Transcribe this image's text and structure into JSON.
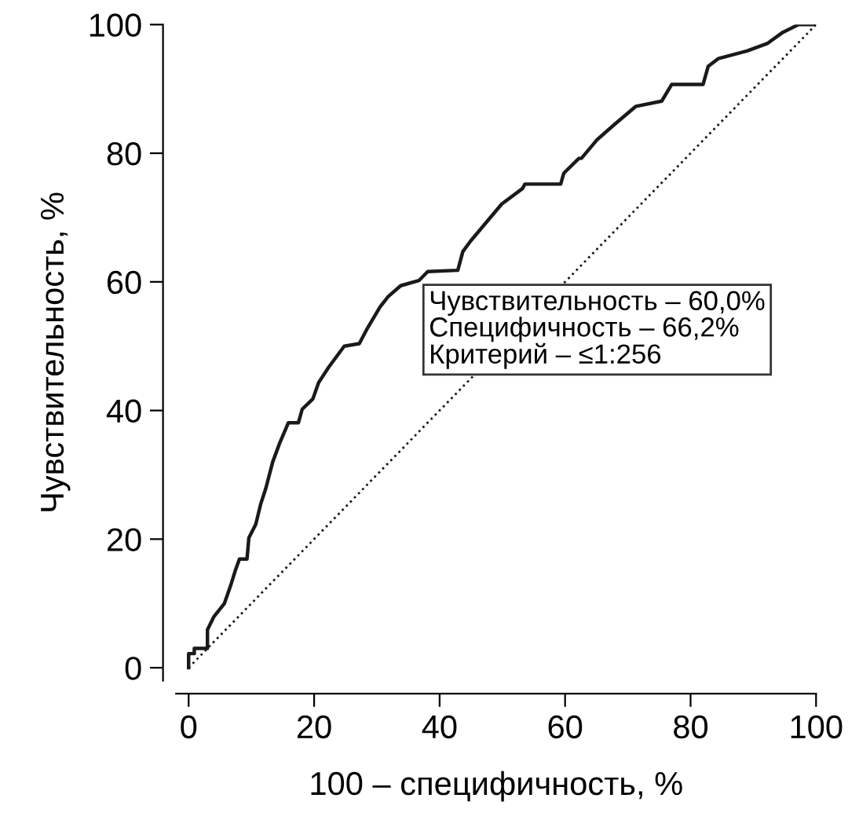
{
  "chart_data": {
    "type": "line",
    "xlabel": "100 – специфичность, %",
    "ylabel": "Чувствительность, %",
    "xlim": [
      -2,
      100
    ],
    "ylim": [
      -2,
      100
    ],
    "xticks": [
      0,
      20,
      40,
      60,
      80,
      100
    ],
    "yticks": [
      0,
      20,
      40,
      60,
      80,
      100
    ],
    "grid": false,
    "legend": false,
    "series": [
      {
        "color": "#1a1a1a",
        "line_style": "solid",
        "x": [
          0,
          0,
          0.9,
          0.9,
          3,
          3,
          4,
          5.7,
          6.7,
          7.4,
          8.1,
          9.3,
          9.6,
          10.7,
          11.5,
          12.3,
          13.4,
          14.5,
          15.9,
          17.5,
          18.1,
          19.8,
          20.7,
          22.3,
          24.8,
          27.2,
          28.5,
          30.5,
          31.8,
          33.8,
          36.7,
          38.1,
          42.9,
          43.7,
          44.9,
          47.4,
          49.9,
          53.2,
          53.6,
          59.3,
          59.8,
          62.2,
          62.6,
          65.1,
          67.9,
          71.3,
          75.4,
          77,
          82,
          82.8,
          84.4,
          89,
          92.3,
          94.7,
          97.2,
          100
        ],
        "values": [
          0,
          2.2,
          2.2,
          3,
          3,
          5.9,
          7.9,
          10,
          12.8,
          15,
          16.9,
          16.9,
          20.2,
          22.3,
          25.5,
          27.9,
          32,
          34.9,
          38.1,
          38.1,
          40.2,
          41.8,
          44.3,
          46.7,
          50,
          50.4,
          52.8,
          56.1,
          57.7,
          59.4,
          60.2,
          61.6,
          61.8,
          64.7,
          66.3,
          69.2,
          72.1,
          74.5,
          75.2,
          75.2,
          76.9,
          79.2,
          79.2,
          82.1,
          84.5,
          87.3,
          88.1,
          90.7,
          90.7,
          93.5,
          94.7,
          95.9,
          97.1,
          98.8,
          100,
          100
        ]
      },
      {
        "color": "#1a1a1a",
        "line_style": "dotted",
        "x": [
          0,
          100
        ],
        "values": [
          0,
          100
        ]
      }
    ],
    "annotations": [
      "Чувствительность – 60,0%",
      "Специфичность – 66,2%",
      "Критерий – ≤1:256"
    ]
  }
}
